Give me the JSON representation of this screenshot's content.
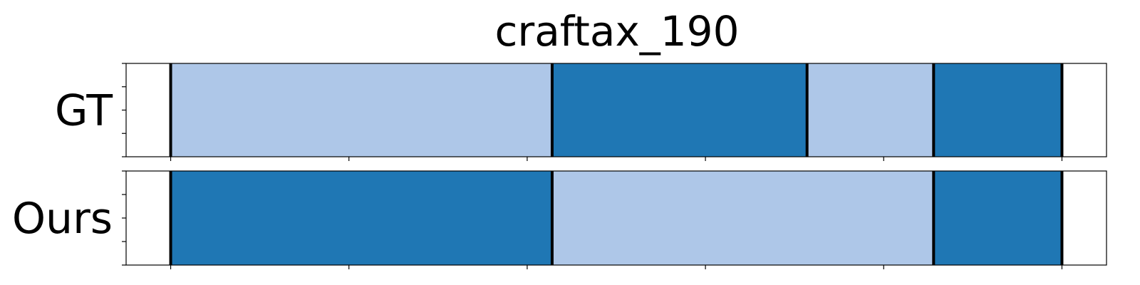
{
  "chart_data": {
    "type": "segmentation",
    "title": "craftax_190",
    "x_range": [
      -0.25,
      5.25
    ],
    "x_ticks": [
      0,
      1,
      2,
      3,
      4,
      5
    ],
    "colors": {
      "light": "#aec7e8",
      "dark": "#1f77b4",
      "boundary": "#000000",
      "frame": "#000000"
    },
    "rows": [
      {
        "label": "GT",
        "segments": [
          {
            "start": 0.0,
            "end": 2.14,
            "color": "light"
          },
          {
            "start": 2.14,
            "end": 3.57,
            "color": "dark"
          },
          {
            "start": 3.57,
            "end": 4.28,
            "color": "light"
          },
          {
            "start": 4.28,
            "end": 5.0,
            "color": "dark"
          }
        ],
        "boundaries": [
          0.0,
          2.14,
          3.57,
          4.28,
          5.0
        ]
      },
      {
        "label": "Ours",
        "segments": [
          {
            "start": 0.0,
            "end": 2.14,
            "color": "dark"
          },
          {
            "start": 2.14,
            "end": 4.28,
            "color": "light"
          },
          {
            "start": 4.28,
            "end": 5.0,
            "color": "dark"
          }
        ],
        "boundaries": [
          0.0,
          2.14,
          4.28,
          5.0
        ]
      }
    ]
  }
}
